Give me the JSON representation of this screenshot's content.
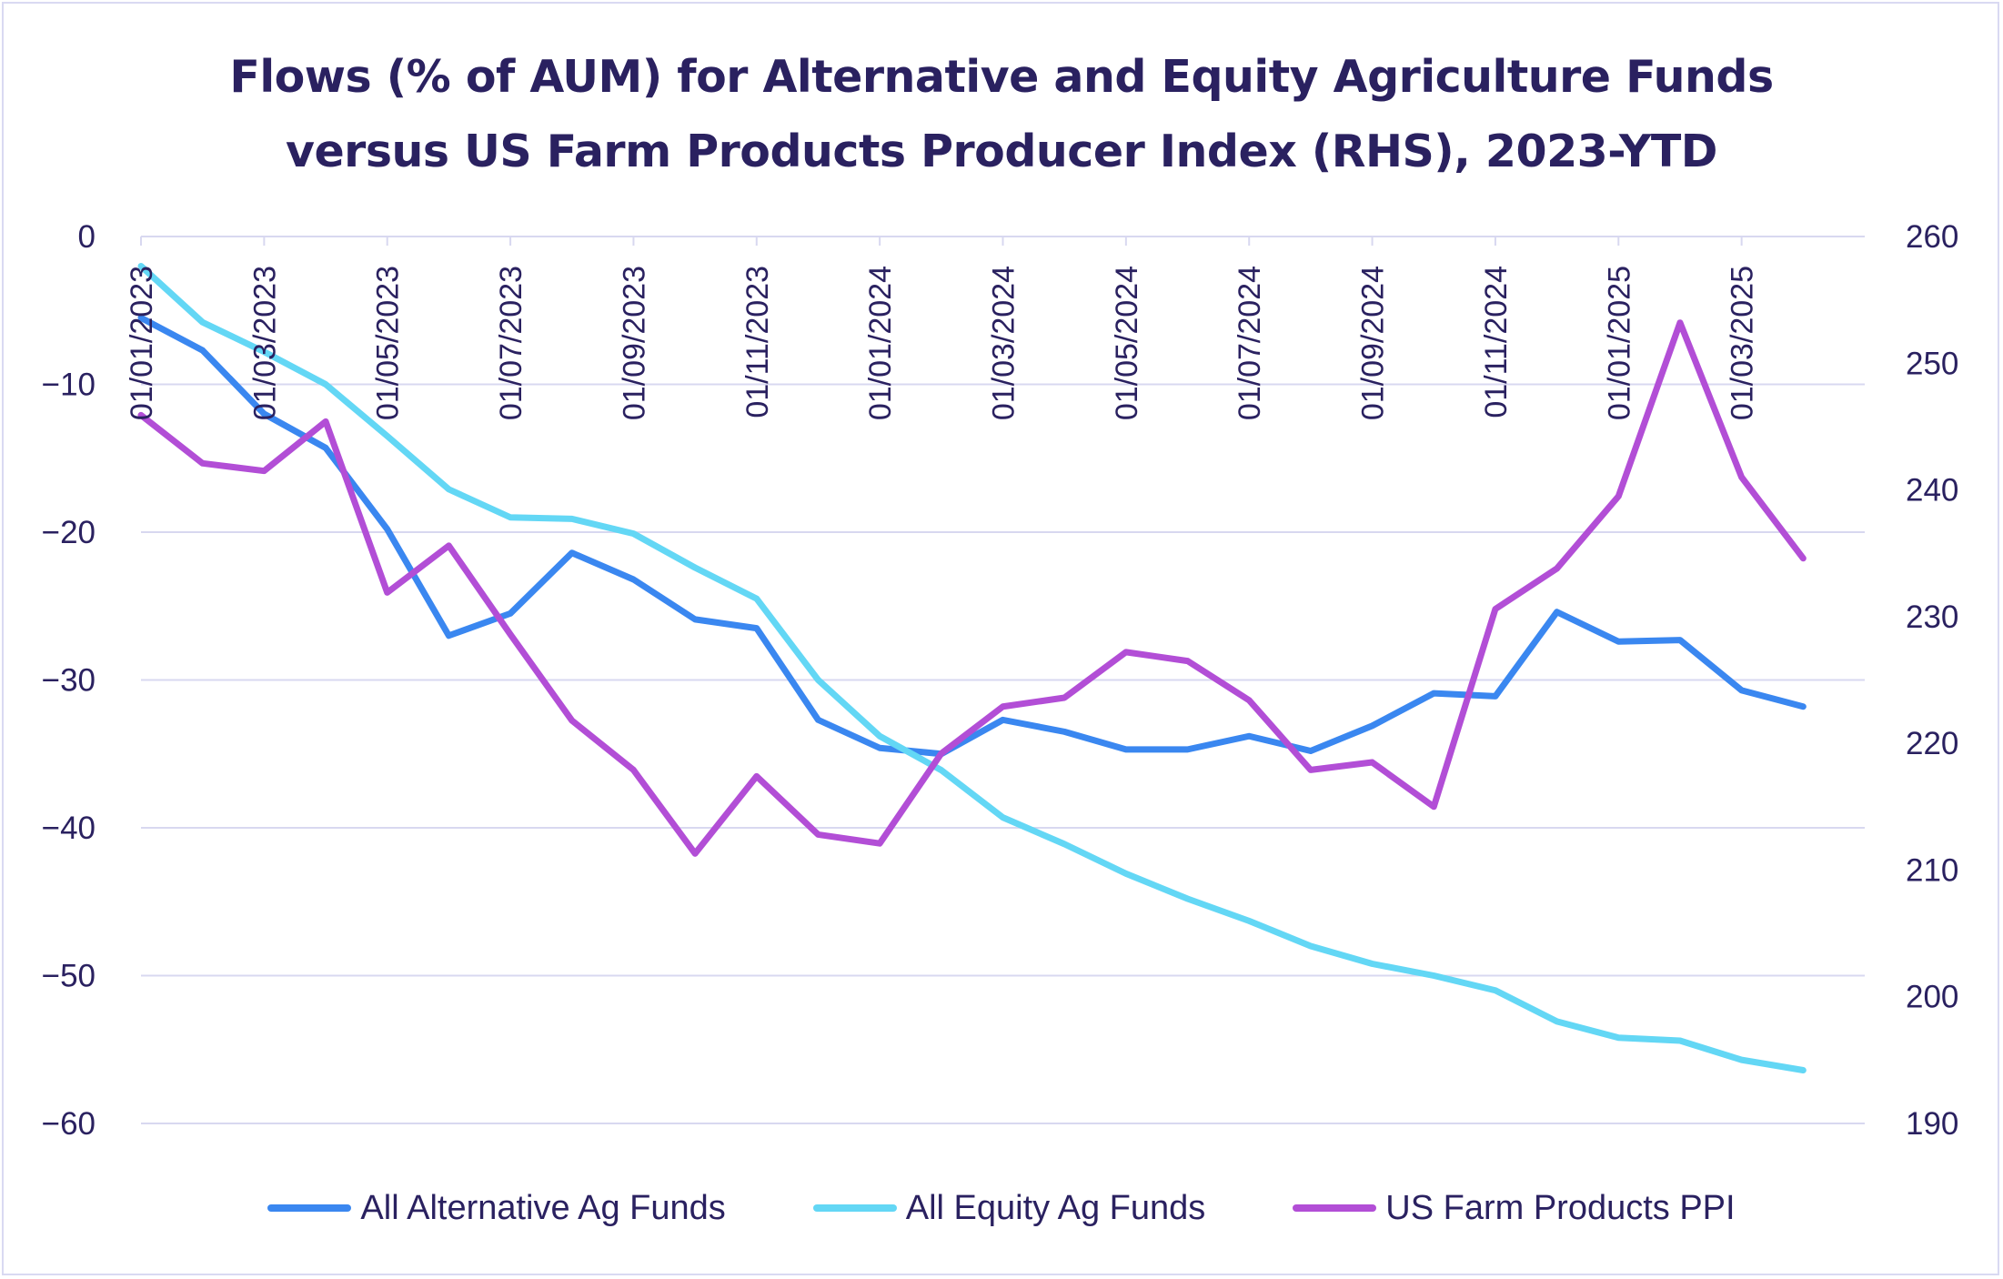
{
  "chart_data": {
    "type": "line",
    "title_lines": [
      "Flows (% of AUM) for Alternative and Equity Agriculture Funds",
      "versus US Farm Products Producer Index (RHS), 2023-YTD"
    ],
    "x": [
      "01/01/2023",
      "01/02/2023",
      "01/03/2023",
      "01/04/2023",
      "01/05/2023",
      "01/06/2023",
      "01/07/2023",
      "01/08/2023",
      "01/09/2023",
      "01/10/2023",
      "01/11/2023",
      "01/12/2023",
      "01/01/2024",
      "01/02/2024",
      "01/03/2024",
      "01/04/2024",
      "01/05/2024",
      "01/06/2024",
      "01/07/2024",
      "01/08/2024",
      "01/09/2024",
      "01/10/2024",
      "01/11/2024",
      "01/12/2024",
      "01/01/2025",
      "01/02/2025",
      "01/03/2025",
      "01/04/2025"
    ],
    "x_tick_labels": [
      "01/01/2023",
      "01/03/2023",
      "01/05/2023",
      "01/07/2023",
      "01/09/2023",
      "01/11/2023",
      "01/01/2024",
      "01/03/2024",
      "01/05/2024",
      "01/07/2024",
      "01/09/2024",
      "01/11/2024",
      "01/01/2025",
      "01/03/2025"
    ],
    "y_left": {
      "ylim": [
        -60,
        0
      ],
      "ticks": [
        "0",
        "−10",
        "−20",
        "−30",
        "−40",
        "−50",
        "−60"
      ],
      "tick_values": [
        0,
        -10,
        -20,
        -30,
        -40,
        -50,
        -60
      ]
    },
    "y_right": {
      "ylim": [
        190,
        260
      ],
      "ticks": [
        "260",
        "250",
        "240",
        "230",
        "220",
        "210",
        "200",
        "190"
      ],
      "tick_values": [
        260,
        250,
        240,
        230,
        220,
        210,
        200,
        190
      ]
    },
    "grid": true,
    "legend_position": "bottom",
    "series": [
      {
        "name": "All Alternative Ag Funds",
        "axis": "left",
        "color": "#3a87f0",
        "values": [
          -5.5,
          -7.7,
          -12.0,
          -14.3,
          -19.8,
          -27.0,
          -25.5,
          -21.4,
          -23.2,
          -25.9,
          -26.5,
          -32.7,
          -34.6,
          -35.0,
          -32.7,
          -33.5,
          -34.7,
          -34.7,
          -33.8,
          -34.8,
          -33.1,
          -30.9,
          -31.1,
          -25.4,
          -27.4,
          -27.3,
          -30.7,
          -31.8
        ]
      },
      {
        "name": "All Equity Ag Funds",
        "axis": "left",
        "color": "#63d7f5",
        "values": [
          -2.0,
          -5.8,
          -7.8,
          -10.0,
          -13.5,
          -17.1,
          -19.0,
          -19.1,
          -20.1,
          -22.4,
          -24.5,
          -30.0,
          -33.8,
          -36.1,
          -39.3,
          -41.1,
          -43.1,
          -44.8,
          -46.3,
          -48.0,
          -49.2,
          -50.0,
          -51.0,
          -53.1,
          -54.2,
          -54.4,
          -55.7,
          -56.4
        ]
      },
      {
        "name": "US Farm Products PPI",
        "axis": "right",
        "color": "#b24ed6",
        "values": [
          245.9,
          242.1,
          241.5,
          245.4,
          231.9,
          235.6,
          228.6,
          221.8,
          217.9,
          211.3,
          217.4,
          212.8,
          212.1,
          219.2,
          222.9,
          223.6,
          227.2,
          226.5,
          223.4,
          217.9,
          218.5,
          215.0,
          230.6,
          233.8,
          239.5,
          253.2,
          241.0,
          234.6
        ]
      }
    ]
  }
}
